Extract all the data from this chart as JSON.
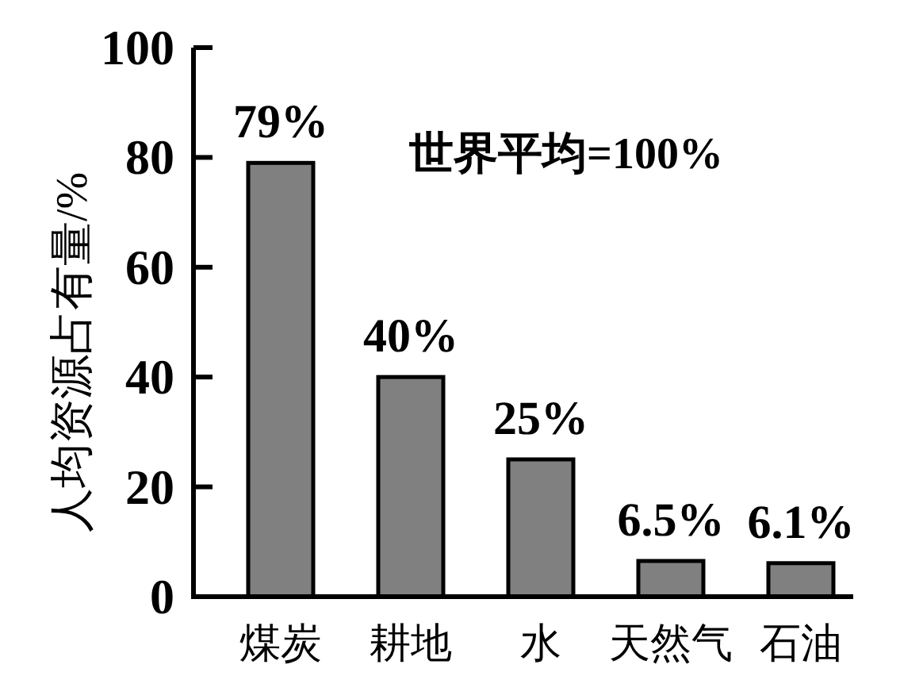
{
  "chart_data": {
    "type": "bar",
    "ylabel": "人均资源占有量/%",
    "annotations": [
      "世界平均=100%"
    ],
    "categories": [
      "煤炭",
      "耕地",
      "水",
      "天然气",
      "石油"
    ],
    "values": [
      79,
      40,
      25,
      6.5,
      6.1
    ],
    "value_labels": [
      "79%",
      "40%",
      "25%",
      "6.5%",
      "6.1%"
    ],
    "color": "#808080",
    "ylim": [
      0,
      100
    ],
    "yticks": [
      0,
      20,
      40,
      60,
      80,
      100
    ]
  }
}
